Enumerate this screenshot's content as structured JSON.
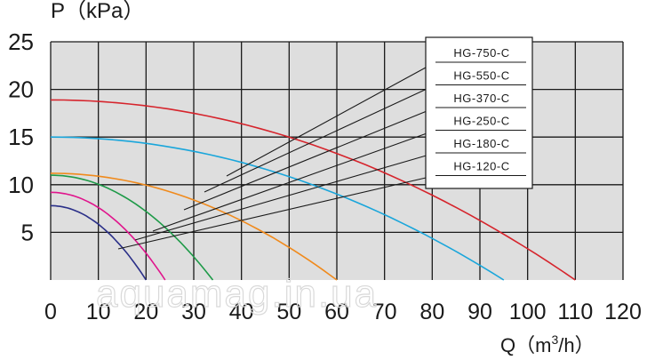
{
  "chart_data": {
    "type": "line",
    "ylabel": "P（kPa）",
    "xlabel_text": "Q（m",
    "xlabel_sup": "3",
    "xlabel_end": "/h）",
    "xlim": [
      0,
      120
    ],
    "ylim": [
      0,
      25
    ],
    "x_ticks": [
      "0",
      "10",
      "20",
      "30",
      "40",
      "50",
      "60",
      "70",
      "80",
      "90",
      "100",
      "110",
      "120"
    ],
    "y_ticks": [
      "25",
      "20",
      "15",
      "10",
      "5"
    ],
    "grid": true,
    "legend_placement": "top-right",
    "series": [
      {
        "name": "HG-750-C",
        "color": "#d6242c",
        "shutoff_head": 18.9,
        "max_flow": 110
      },
      {
        "name": "HG-550-C",
        "color": "#1aa6db",
        "shutoff_head": 15.0,
        "max_flow": 95
      },
      {
        "name": "HG-370-C",
        "color": "#f08a1c",
        "shutoff_head": 11.2,
        "max_flow": 60
      },
      {
        "name": "HG-250-C",
        "color": "#1e9a48",
        "shutoff_head": 11.0,
        "max_flow": 34
      },
      {
        "name": "HG-180-C",
        "color": "#e0148c",
        "shutoff_head": 9.2,
        "max_flow": 24
      },
      {
        "name": "HG-120-C",
        "color": "#2a2f88",
        "shutoff_head": 7.8,
        "max_flow": 20
      }
    ],
    "watermark": "aquamag.in.ua"
  }
}
